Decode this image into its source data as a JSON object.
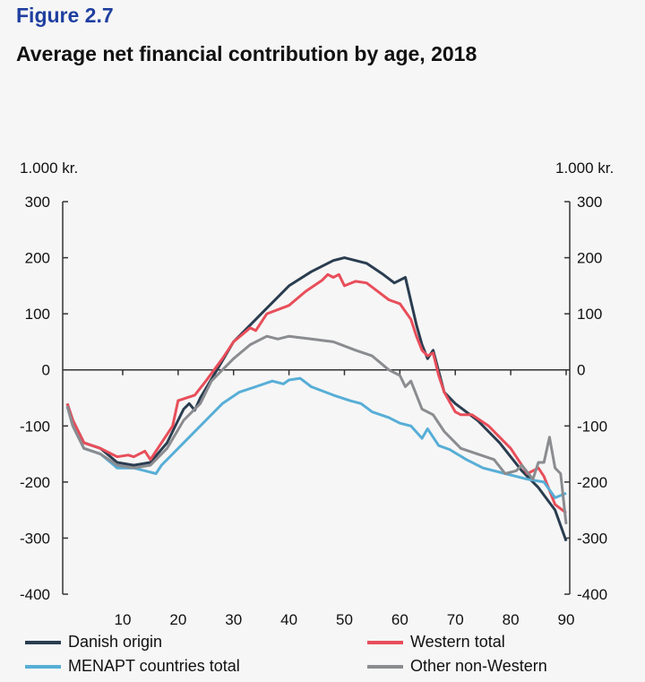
{
  "header": {
    "figure_label": "Figure 2.7",
    "title": "Average net financial contribution by age, 2018"
  },
  "chart_data": {
    "type": "line",
    "title": "Average net financial contribution by age, 2018",
    "ylabel_left": "1.000 kr.",
    "ylabel_right": "1.000 kr.",
    "ylim": [
      -400,
      300
    ],
    "yticks": [
      300,
      200,
      100,
      0,
      -100,
      -200,
      -300,
      -400
    ],
    "xlim": [
      0,
      90
    ],
    "xticks": [
      10,
      20,
      30,
      40,
      50,
      60,
      70,
      80,
      90
    ],
    "grid": false,
    "legend_position": "bottom",
    "series": [
      {
        "name": "Danish origin",
        "color": "#2a3d50",
        "points": [
          [
            0,
            -60
          ],
          [
            1,
            -90
          ],
          [
            3,
            -130
          ],
          [
            6,
            -140
          ],
          [
            9,
            -165
          ],
          [
            12,
            -170
          ],
          [
            15,
            -165
          ],
          [
            18,
            -130
          ],
          [
            20,
            -90
          ],
          [
            21,
            -70
          ],
          [
            22,
            -60
          ],
          [
            23,
            -72
          ],
          [
            24,
            -50
          ],
          [
            27,
            0
          ],
          [
            30,
            50
          ],
          [
            33,
            80
          ],
          [
            35,
            100
          ],
          [
            38,
            130
          ],
          [
            40,
            150
          ],
          [
            44,
            175
          ],
          [
            48,
            195
          ],
          [
            50,
            200
          ],
          [
            52,
            195
          ],
          [
            54,
            190
          ],
          [
            57,
            170
          ],
          [
            59,
            155
          ],
          [
            61,
            165
          ],
          [
            63,
            80
          ],
          [
            64,
            45
          ],
          [
            65,
            20
          ],
          [
            66,
            35
          ],
          [
            68,
            -40
          ],
          [
            70,
            -60
          ],
          [
            74,
            -90
          ],
          [
            78,
            -130
          ],
          [
            82,
            -180
          ],
          [
            85,
            -210
          ],
          [
            88,
            -250
          ],
          [
            90,
            -305
          ]
        ]
      },
      {
        "name": "Western total",
        "color": "#e84e5a",
        "points": [
          [
            0,
            -60
          ],
          [
            1,
            -90
          ],
          [
            3,
            -130
          ],
          [
            6,
            -140
          ],
          [
            9,
            -155
          ],
          [
            11,
            -152
          ],
          [
            12,
            -155
          ],
          [
            14,
            -145
          ],
          [
            15,
            -160
          ],
          [
            17,
            -130
          ],
          [
            19,
            -100
          ],
          [
            20,
            -55
          ],
          [
            23,
            -45
          ],
          [
            25,
            -20
          ],
          [
            28,
            20
          ],
          [
            30,
            50
          ],
          [
            33,
            75
          ],
          [
            34,
            70
          ],
          [
            36,
            100
          ],
          [
            40,
            115
          ],
          [
            43,
            140
          ],
          [
            46,
            160
          ],
          [
            47,
            170
          ],
          [
            48,
            165
          ],
          [
            49,
            170
          ],
          [
            50,
            150
          ],
          [
            52,
            158
          ],
          [
            54,
            155
          ],
          [
            56,
            140
          ],
          [
            58,
            125
          ],
          [
            60,
            118
          ],
          [
            62,
            90
          ],
          [
            63,
            60
          ],
          [
            64,
            35
          ],
          [
            65,
            25
          ],
          [
            66,
            30
          ],
          [
            67,
            -10
          ],
          [
            68,
            -40
          ],
          [
            70,
            -75
          ],
          [
            71,
            -80
          ],
          [
            73,
            -80
          ],
          [
            76,
            -100
          ],
          [
            80,
            -140
          ],
          [
            82,
            -170
          ],
          [
            83,
            -185
          ],
          [
            84,
            -180
          ],
          [
            85,
            -175
          ],
          [
            86,
            -190
          ],
          [
            88,
            -240
          ],
          [
            90,
            -255
          ]
        ]
      },
      {
        "name": "MENAPT countries total",
        "color": "#57aed6",
        "points": [
          [
            0,
            -65
          ],
          [
            1,
            -100
          ],
          [
            3,
            -140
          ],
          [
            6,
            -150
          ],
          [
            9,
            -175
          ],
          [
            12,
            -175
          ],
          [
            14,
            -180
          ],
          [
            16,
            -185
          ],
          [
            17,
            -170
          ],
          [
            19,
            -150
          ],
          [
            22,
            -120
          ],
          [
            25,
            -90
          ],
          [
            28,
            -60
          ],
          [
            31,
            -40
          ],
          [
            34,
            -30
          ],
          [
            37,
            -20
          ],
          [
            39,
            -25
          ],
          [
            40,
            -18
          ],
          [
            42,
            -15
          ],
          [
            44,
            -30
          ],
          [
            48,
            -45
          ],
          [
            51,
            -55
          ],
          [
            53,
            -60
          ],
          [
            55,
            -75
          ],
          [
            58,
            -85
          ],
          [
            60,
            -95
          ],
          [
            62,
            -100
          ],
          [
            64,
            -122
          ],
          [
            65,
            -105
          ],
          [
            67,
            -135
          ],
          [
            69,
            -142
          ],
          [
            72,
            -160
          ],
          [
            75,
            -175
          ],
          [
            79,
            -185
          ],
          [
            83,
            -195
          ],
          [
            86,
            -200
          ],
          [
            88,
            -228
          ],
          [
            90,
            -220
          ]
        ]
      },
      {
        "name": "Other non-Western",
        "color": "#8a8c90",
        "points": [
          [
            0,
            -65
          ],
          [
            1,
            -100
          ],
          [
            3,
            -140
          ],
          [
            6,
            -150
          ],
          [
            9,
            -170
          ],
          [
            12,
            -175
          ],
          [
            15,
            -170
          ],
          [
            18,
            -140
          ],
          [
            21,
            -90
          ],
          [
            24,
            -60
          ],
          [
            26,
            -20
          ],
          [
            28,
            0
          ],
          [
            30,
            20
          ],
          [
            33,
            45
          ],
          [
            36,
            60
          ],
          [
            38,
            55
          ],
          [
            40,
            60
          ],
          [
            44,
            55
          ],
          [
            48,
            50
          ],
          [
            52,
            35
          ],
          [
            55,
            25
          ],
          [
            58,
            0
          ],
          [
            60,
            -10
          ],
          [
            61,
            -30
          ],
          [
            62,
            -20
          ],
          [
            64,
            -70
          ],
          [
            66,
            -80
          ],
          [
            68,
            -110
          ],
          [
            71,
            -140
          ],
          [
            74,
            -150
          ],
          [
            77,
            -160
          ],
          [
            79,
            -185
          ],
          [
            81,
            -180
          ],
          [
            82,
            -170
          ],
          [
            84,
            -195
          ],
          [
            85,
            -165
          ],
          [
            86,
            -165
          ],
          [
            87,
            -120
          ],
          [
            88,
            -175
          ],
          [
            89,
            -185
          ],
          [
            90,
            -275
          ]
        ]
      }
    ]
  }
}
